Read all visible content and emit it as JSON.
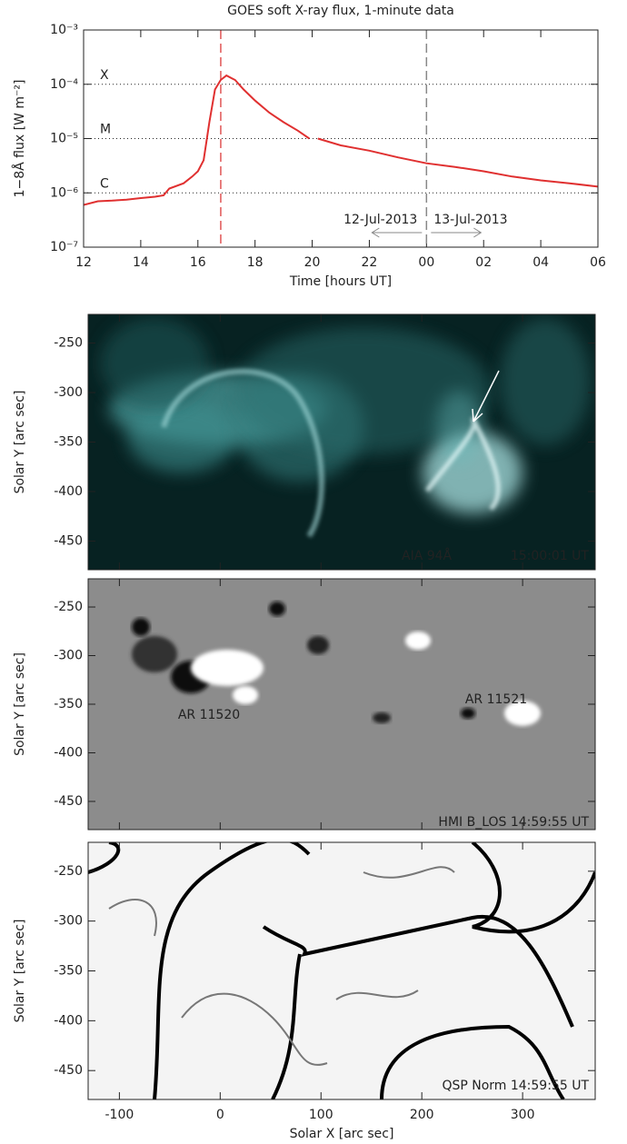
{
  "chart_data": [
    {
      "type": "line",
      "title": "GOES soft X-ray flux,  1-minute data",
      "xlabel": "Time [hours UT]",
      "ylabel": "1−8Å flux [W m⁻²]",
      "log_y": true,
      "color": "#e03030",
      "x": [
        12,
        12.5,
        13,
        13.5,
        14,
        14.5,
        14.8,
        15,
        15.5,
        15.8,
        16,
        16.2,
        16.4,
        16.6,
        16.8,
        17,
        17.3,
        17.6,
        18,
        18.5,
        19,
        19.5,
        19.9,
        20.05,
        20.2,
        21,
        22,
        23,
        24,
        25,
        26,
        27,
        28,
        29,
        30
      ],
      "values": [
        6e-07,
        7e-07,
        7.2e-07,
        7.5e-07,
        8e-07,
        8.5e-07,
        9e-07,
        1.2e-06,
        1.5e-06,
        2e-06,
        2.5e-06,
        4e-06,
        2e-05,
        8e-05,
        0.00012,
        0.000145,
        0.00012,
        8e-05,
        5e-05,
        3e-05,
        2e-05,
        1.4e-05,
        1e-05,
        null,
        1e-05,
        7.5e-06,
        6e-06,
        4.5e-06,
        3.5e-06,
        3e-06,
        2.5e-06,
        2e-06,
        1.7e-06,
        1.5e-06,
        1.3e-06
      ],
      "xlim": [
        12,
        30
      ],
      "ylim": [
        1e-07,
        0.001
      ],
      "xticks": [
        12,
        14,
        16,
        18,
        20,
        22,
        {
          "value": 24,
          "label": "00"
        },
        {
          "value": 26,
          "label": "02"
        },
        {
          "value": 28,
          "label": "04"
        },
        {
          "value": 30,
          "label": "06"
        }
      ],
      "yticks": [
        {
          "value": 1e-07,
          "label": "10⁻⁷"
        },
        {
          "value": 1e-06,
          "label": "10⁻⁶"
        },
        {
          "value": 1e-05,
          "label": "10⁻⁵"
        },
        {
          "value": 0.0001,
          "label": "10⁻⁴"
        },
        {
          "value": 0.001,
          "label": "10⁻³"
        }
      ],
      "levels": [
        {
          "label": "X",
          "value": 0.0001
        },
        {
          "label": "M",
          "value": 1e-05
        },
        {
          "label": "C",
          "value": 1e-06
        }
      ],
      "vlines": [
        {
          "value": 16.8,
          "color": "#e05555"
        },
        {
          "value": 24,
          "color": "#888888"
        }
      ],
      "dates": [
        "12-Jul-2013",
        "13-Jul-2013"
      ]
    },
    {
      "type": "image",
      "ylabel": "Solar Y [arc sec]",
      "color": "#072222",
      "xlim": [
        -131,
        372
      ],
      "ylim": [
        -479,
        -221
      ],
      "xticks": [
        -100,
        0,
        100,
        200,
        300
      ],
      "yticks": [
        -250,
        -300,
        -350,
        -400,
        -450
      ],
      "annotations": [
        "AIA 94Å",
        "15:00:01 UT"
      ]
    },
    {
      "type": "image",
      "ylabel": "Solar Y [arc sec]",
      "color": "#8c8c8c",
      "xlim": [
        -131,
        372
      ],
      "ylim": [
        -479,
        -221
      ],
      "xticks": [
        -100,
        0,
        100,
        200,
        300
      ],
      "yticks": [
        -250,
        -300,
        -350,
        -400,
        -450
      ],
      "annotations": [
        "HMI B_LOS 14:59:55 UT",
        "AR 11520",
        "AR 11521"
      ]
    },
    {
      "type": "image",
      "ylabel": "Solar Y [arc sec]",
      "xlabel": "Solar X [arc sec]",
      "color": "#f4f4f4",
      "xlim": [
        -131,
        372
      ],
      "ylim": [
        -479,
        -221
      ],
      "xticks": [
        -100,
        0,
        100,
        200,
        300
      ],
      "yticks": [
        -250,
        -300,
        -350,
        -400,
        -450
      ],
      "annotations": [
        "QSP Norm 14:59:55 UT"
      ]
    }
  ]
}
